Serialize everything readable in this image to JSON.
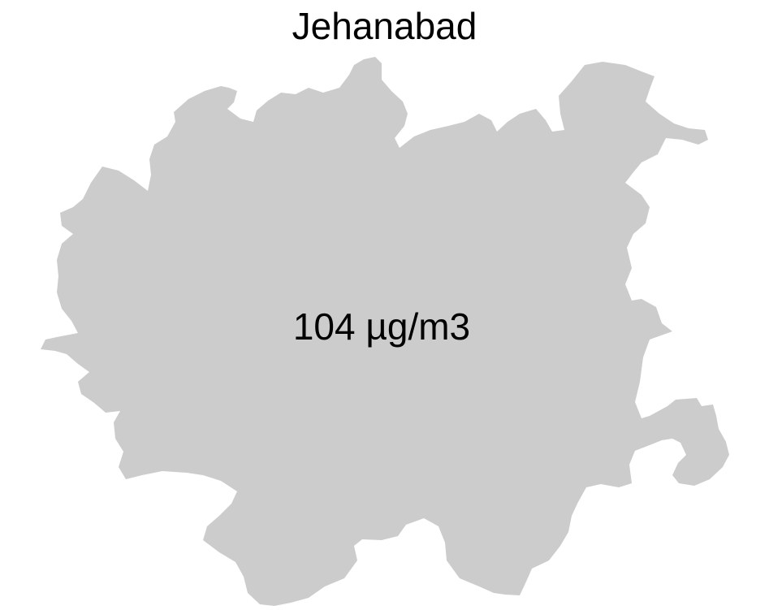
{
  "map": {
    "title": "Jehanabad",
    "region_fill": "#cccccc",
    "value_label": "104 µg/m3"
  }
}
